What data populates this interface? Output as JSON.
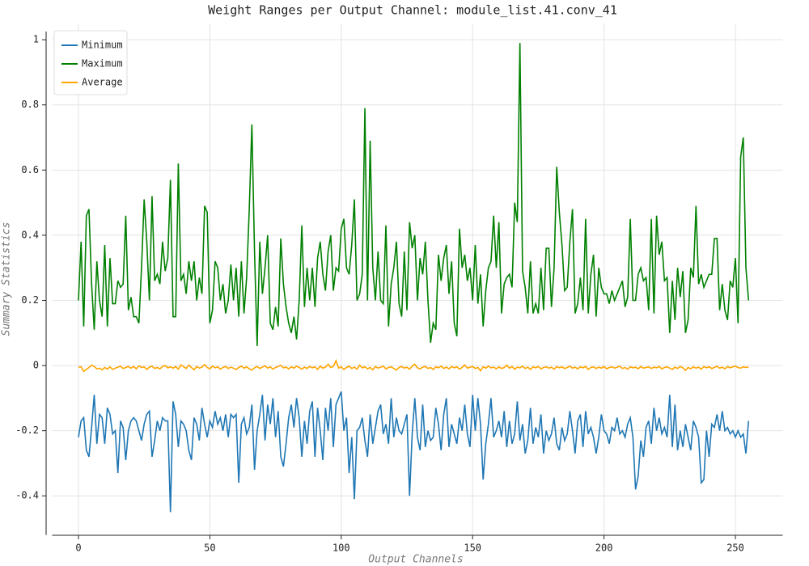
{
  "chart_data": {
    "type": "line",
    "title": "Weight Ranges per Output Channel: module_list.41.conv_41",
    "x_label": "Output Channels",
    "y_label": "Summary Statistics",
    "xlim": [
      -10,
      268
    ],
    "ylim": [
      -0.52,
      1.05
    ],
    "xticks": [
      0,
      50,
      100,
      150,
      200,
      250
    ],
    "yticks": [
      -0.4,
      -0.2,
      0,
      0.2,
      0.4,
      0.6,
      0.8,
      1
    ],
    "grid": true,
    "legend": "upper left",
    "series": [
      {
        "name": "Minimum",
        "color": "#1f77b4",
        "values": [
          -0.22,
          -0.17,
          -0.16,
          -0.26,
          -0.28,
          -0.19,
          -0.09,
          -0.24,
          -0.15,
          -0.16,
          -0.24,
          -0.13,
          -0.15,
          -0.21,
          -0.2,
          -0.33,
          -0.17,
          -0.19,
          -0.29,
          -0.2,
          -0.17,
          -0.16,
          -0.17,
          -0.2,
          -0.23,
          -0.18,
          -0.15,
          -0.14,
          -0.28,
          -0.23,
          -0.17,
          -0.2,
          -0.16,
          -0.17,
          -0.17,
          -0.45,
          -0.11,
          -0.15,
          -0.25,
          -0.17,
          -0.18,
          -0.2,
          -0.26,
          -0.29,
          -0.16,
          -0.18,
          -0.23,
          -0.13,
          -0.18,
          -0.22,
          -0.17,
          -0.19,
          -0.14,
          -0.18,
          -0.16,
          -0.2,
          -0.15,
          -0.22,
          -0.15,
          -0.16,
          -0.15,
          -0.36,
          -0.18,
          -0.16,
          -0.21,
          -0.19,
          -0.12,
          -0.32,
          -0.2,
          -0.15,
          -0.09,
          -0.23,
          -0.12,
          -0.18,
          -0.1,
          -0.22,
          -0.14,
          -0.28,
          -0.31,
          -0.24,
          -0.16,
          -0.12,
          -0.19,
          -0.1,
          -0.16,
          -0.28,
          -0.17,
          -0.24,
          -0.14,
          -0.11,
          -0.28,
          -0.13,
          -0.2,
          -0.29,
          -0.13,
          -0.2,
          -0.1,
          -0.25,
          -0.12,
          -0.1,
          -0.08,
          -0.2,
          -0.16,
          -0.33,
          -0.22,
          -0.41,
          -0.2,
          -0.19,
          -0.16,
          -0.23,
          -0.28,
          -0.15,
          -0.24,
          -0.19,
          -0.14,
          -0.12,
          -0.21,
          -0.18,
          -0.24,
          -0.1,
          -0.22,
          -0.16,
          -0.2,
          -0.21,
          -0.18,
          -0.15,
          -0.4,
          -0.21,
          -0.1,
          -0.22,
          -0.26,
          -0.12,
          -0.25,
          -0.2,
          -0.23,
          -0.22,
          -0.13,
          -0.18,
          -0.26,
          -0.15,
          -0.1,
          -0.25,
          -0.18,
          -0.21,
          -0.24,
          -0.16,
          -0.2,
          -0.12,
          -0.21,
          -0.25,
          -0.09,
          -0.2,
          -0.1,
          -0.18,
          -0.35,
          -0.24,
          -0.18,
          -0.1,
          -0.22,
          -0.2,
          -0.17,
          -0.22,
          -0.14,
          -0.25,
          -0.17,
          -0.24,
          -0.21,
          -0.11,
          -0.23,
          -0.18,
          -0.27,
          -0.23,
          -0.13,
          -0.24,
          -0.19,
          -0.22,
          -0.15,
          -0.27,
          -0.2,
          -0.23,
          -0.21,
          -0.16,
          -0.24,
          -0.26,
          -0.19,
          -0.23,
          -0.21,
          -0.14,
          -0.2,
          -0.27,
          -0.17,
          -0.15,
          -0.25,
          -0.14,
          -0.21,
          -0.19,
          -0.22,
          -0.27,
          -0.22,
          -0.15,
          -0.2,
          -0.21,
          -0.24,
          -0.19,
          -0.2,
          -0.16,
          -0.21,
          -0.2,
          -0.22,
          -0.18,
          -0.16,
          -0.22,
          -0.38,
          -0.34,
          -0.23,
          -0.28,
          -0.19,
          -0.17,
          -0.24,
          -0.13,
          -0.2,
          -0.16,
          -0.21,
          -0.19,
          -0.22,
          -0.09,
          -0.25,
          -0.12,
          -0.26,
          -0.2,
          -0.25,
          -0.18,
          -0.22,
          -0.26,
          -0.17,
          -0.19,
          -0.22,
          -0.36,
          -0.35,
          -0.2,
          -0.28,
          -0.18,
          -0.19,
          -0.15,
          -0.2,
          -0.14,
          -0.2,
          -0.19,
          -0.21,
          -0.2,
          -0.22,
          -0.2,
          -0.22,
          -0.21,
          -0.27,
          -0.17
        ]
      },
      {
        "name": "Maximum",
        "color": "#008000",
        "values": [
          0.2,
          0.38,
          0.12,
          0.46,
          0.48,
          0.25,
          0.11,
          0.32,
          0.2,
          0.15,
          0.37,
          0.12,
          0.33,
          0.19,
          0.19,
          0.26,
          0.24,
          0.25,
          0.46,
          0.17,
          0.21,
          0.15,
          0.15,
          0.13,
          0.3,
          0.51,
          0.38,
          0.2,
          0.52,
          0.26,
          0.28,
          0.25,
          0.38,
          0.29,
          0.33,
          0.57,
          0.15,
          0.15,
          0.62,
          0.26,
          0.28,
          0.22,
          0.32,
          0.26,
          0.32,
          0.2,
          0.27,
          0.22,
          0.49,
          0.47,
          0.13,
          0.17,
          0.32,
          0.3,
          0.2,
          0.25,
          0.16,
          0.2,
          0.31,
          0.2,
          0.3,
          0.15,
          0.32,
          0.16,
          0.27,
          0.48,
          0.74,
          0.35,
          0.06,
          0.38,
          0.22,
          0.3,
          0.4,
          0.13,
          0.11,
          0.18,
          0.12,
          0.39,
          0.25,
          0.18,
          0.13,
          0.1,
          0.15,
          0.08,
          0.2,
          0.43,
          0.18,
          0.3,
          0.2,
          0.3,
          0.18,
          0.33,
          0.38,
          0.28,
          0.23,
          0.35,
          0.4,
          0.23,
          0.3,
          0.29,
          0.42,
          0.45,
          0.3,
          0.28,
          0.37,
          0.51,
          0.2,
          0.22,
          0.28,
          0.79,
          0.2,
          0.69,
          0.3,
          0.2,
          0.35,
          0.2,
          0.19,
          0.43,
          0.12,
          0.25,
          0.3,
          0.38,
          0.19,
          0.15,
          0.35,
          0.17,
          0.44,
          0.36,
          0.4,
          0.2,
          0.33,
          0.28,
          0.38,
          0.2,
          0.07,
          0.13,
          0.11,
          0.34,
          0.26,
          0.33,
          0.37,
          0.22,
          0.32,
          0.13,
          0.09,
          0.42,
          0.3,
          0.34,
          0.26,
          0.3,
          0.2,
          0.37,
          0.19,
          0.28,
          0.12,
          0.23,
          0.3,
          0.32,
          0.46,
          0.3,
          0.44,
          0.16,
          0.25,
          0.27,
          0.28,
          0.24,
          0.5,
          0.44,
          0.99,
          0.29,
          0.24,
          0.16,
          0.32,
          0.16,
          0.19,
          0.16,
          0.3,
          0.17,
          0.36,
          0.36,
          0.18,
          0.3,
          0.61,
          0.47,
          0.37,
          0.23,
          0.24,
          0.38,
          0.48,
          0.16,
          0.19,
          0.27,
          0.17,
          0.45,
          0.16,
          0.28,
          0.34,
          0.15,
          0.3,
          0.24,
          0.22,
          0.22,
          0.19,
          0.23,
          0.2,
          0.22,
          0.24,
          0.26,
          0.18,
          0.21,
          0.45,
          0.2,
          0.2,
          0.28,
          0.3,
          0.26,
          0.27,
          0.17,
          0.45,
          0.16,
          0.46,
          0.34,
          0.38,
          0.26,
          0.27,
          0.1,
          0.26,
          0.14,
          0.3,
          0.21,
          0.29,
          0.1,
          0.14,
          0.3,
          0.27,
          0.49,
          0.25,
          0.28,
          0.24,
          0.26,
          0.28,
          0.28,
          0.39,
          0.39,
          0.17,
          0.25,
          0.17,
          0.14,
          0.26,
          0.24,
          0.33,
          0.13,
          0.64,
          0.7,
          0.3,
          0.2
        ]
      },
      {
        "name": "Average",
        "color": "#ffa500",
        "values": [
          -0.005,
          -0.004,
          -0.018,
          -0.012,
          -0.006,
          0.001,
          -0.003,
          -0.01,
          -0.008,
          -0.013,
          -0.006,
          -0.011,
          -0.004,
          -0.012,
          -0.008,
          -0.005,
          -0.002,
          -0.009,
          -0.006,
          -0.003,
          -0.008,
          -0.003,
          -0.01,
          -0.001,
          -0.006,
          -0.004,
          -0.012,
          -0.005,
          -0.002,
          -0.009,
          -0.006,
          -0.01,
          -0.003,
          0.0,
          -0.007,
          -0.004,
          -0.008,
          -0.003,
          -0.011,
          0.002,
          -0.004,
          -0.009,
          0.001,
          -0.006,
          -0.013,
          -0.003,
          -0.008,
          -0.005,
          0.003,
          -0.006,
          -0.01,
          -0.002,
          -0.007,
          -0.004,
          -0.011,
          -0.006,
          -0.003,
          -0.009,
          -0.005,
          -0.008,
          -0.012,
          -0.006,
          -0.002,
          -0.008,
          -0.004,
          -0.01,
          -0.014,
          -0.007,
          -0.003,
          -0.009,
          -0.005,
          -0.001,
          -0.008,
          -0.004,
          -0.011,
          -0.006,
          -0.003,
          0.001,
          -0.007,
          -0.005,
          -0.01,
          -0.004,
          -0.008,
          -0.002,
          -0.006,
          -0.011,
          -0.005,
          -0.009,
          -0.003,
          -0.007,
          -0.004,
          -0.012,
          -0.002,
          -0.008,
          -0.005,
          0.004,
          -0.006,
          -0.003,
          0.015,
          -0.008,
          -0.004,
          -0.012,
          -0.006,
          -0.002,
          -0.009,
          -0.005,
          -0.011,
          0.001,
          -0.007,
          -0.004,
          -0.01,
          -0.006,
          -0.013,
          -0.003,
          -0.008,
          -0.005,
          -0.002,
          -0.01,
          -0.006,
          -0.004,
          -0.009,
          -0.014,
          -0.006,
          -0.003,
          -0.008,
          -0.005,
          -0.011,
          -0.002,
          0.004,
          -0.007,
          -0.01,
          -0.005,
          -0.003,
          -0.009,
          -0.006,
          -0.012,
          -0.004,
          -0.007,
          -0.002,
          -0.009,
          -0.005,
          -0.01,
          -0.003,
          -0.007,
          -0.004,
          -0.011,
          -0.006,
          0.002,
          -0.008,
          -0.005,
          -0.003,
          -0.009,
          -0.006,
          -0.016,
          -0.004,
          -0.008,
          -0.002,
          -0.007,
          -0.005,
          -0.01,
          -0.004,
          -0.009,
          -0.006,
          0.001,
          -0.008,
          -0.003,
          -0.011,
          -0.005,
          -0.007,
          -0.002,
          -0.009,
          -0.005,
          -0.012,
          -0.004,
          -0.007,
          -0.003,
          -0.01,
          -0.006,
          -0.004,
          -0.008,
          -0.005,
          -0.011,
          -0.003,
          -0.007,
          -0.004,
          -0.009,
          -0.006,
          -0.002,
          -0.008,
          -0.005,
          -0.01,
          -0.004,
          -0.007,
          -0.003,
          -0.012,
          -0.006,
          -0.004,
          -0.009,
          -0.005,
          -0.008,
          -0.003,
          -0.01,
          -0.006,
          -0.004,
          -0.008,
          -0.005,
          -0.002,
          -0.009,
          -0.006,
          -0.011,
          -0.004,
          -0.007,
          -0.005,
          -0.01,
          -0.003,
          -0.008,
          -0.006,
          -0.004,
          -0.009,
          -0.005,
          -0.007,
          -0.003,
          -0.01,
          -0.006,
          -0.004,
          -0.008,
          -0.012,
          -0.005,
          -0.009,
          -0.003,
          -0.007,
          -0.015,
          -0.006,
          -0.01,
          -0.004,
          -0.008,
          -0.005,
          -0.011,
          -0.003,
          -0.007,
          -0.004,
          -0.009,
          -0.006,
          -0.002,
          -0.008,
          -0.005,
          -0.01,
          -0.003,
          -0.007,
          -0.004,
          -0.002,
          -0.006,
          -0.008,
          -0.004,
          -0.006,
          -0.005
        ]
      }
    ]
  }
}
